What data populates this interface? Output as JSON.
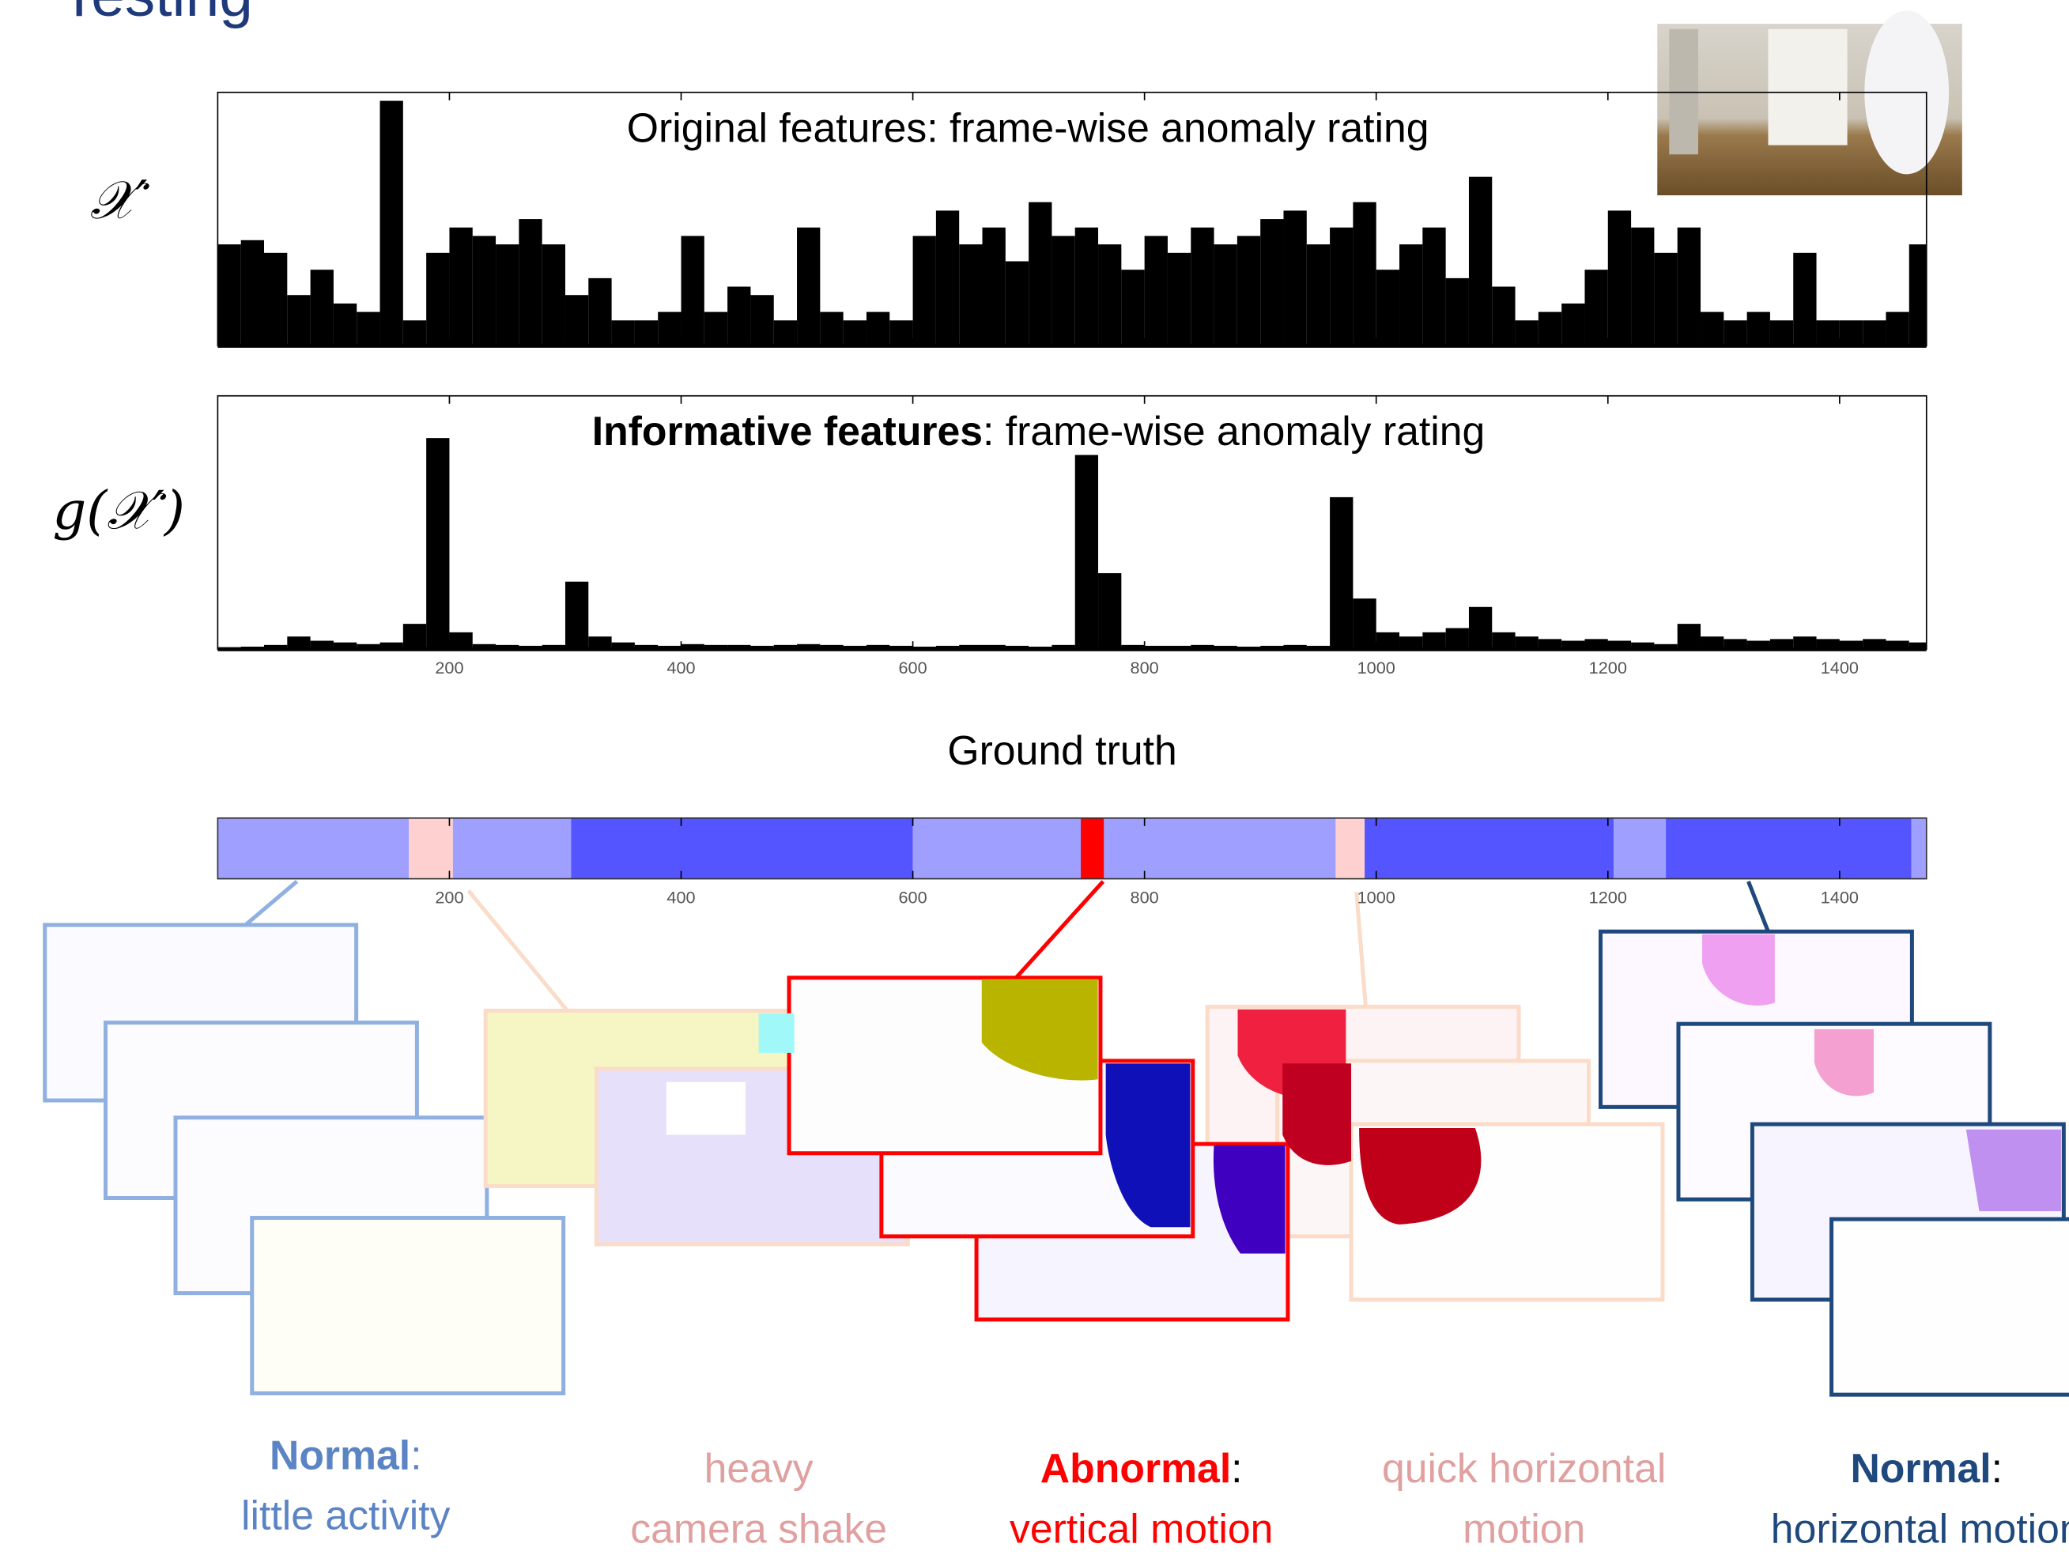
{
  "header": {
    "title": "Testing"
  },
  "chart_data": [
    {
      "type": "histogram",
      "title": "Original features: frame-wise anomaly rating",
      "ylabel": "𝒳′",
      "color": "#000000",
      "bins": [
        0,
        20,
        40,
        60,
        80,
        100,
        120,
        140,
        160,
        180,
        200,
        220,
        240,
        260,
        280,
        300,
        320,
        340,
        360,
        380,
        400,
        420,
        440,
        460,
        480,
        500,
        520,
        540,
        560,
        580,
        600,
        620,
        640,
        660,
        680,
        700,
        720,
        740,
        760,
        780,
        800,
        820,
        840,
        860,
        880,
        900,
        920,
        940,
        960,
        980,
        1000,
        1020,
        1040,
        1060,
        1080,
        1100,
        1120,
        1140,
        1160,
        1180,
        1200,
        1220,
        1240,
        1260,
        1280,
        1300,
        1320,
        1340,
        1360,
        1380,
        1400,
        1420,
        1440,
        1460,
        1475
      ],
      "values": [
        1.2,
        1.25,
        1.1,
        0.6,
        0.9,
        0.5,
        0.4,
        2.9,
        0.3,
        1.1,
        1.4,
        1.3,
        1.2,
        1.5,
        1.2,
        0.6,
        0.8,
        0.3,
        0.3,
        0.4,
        1.3,
        0.4,
        0.7,
        0.6,
        0.3,
        1.4,
        0.4,
        0.3,
        0.4,
        0.3,
        1.3,
        1.6,
        1.2,
        1.4,
        1.0,
        1.7,
        1.3,
        1.4,
        1.2,
        0.9,
        1.3,
        1.1,
        1.4,
        1.2,
        1.3,
        1.5,
        1.6,
        1.2,
        1.4,
        1.7,
        0.9,
        1.2,
        1.4,
        0.8,
        2.0,
        0.7,
        0.3,
        0.4,
        0.5,
        0.9,
        1.6,
        1.4,
        1.1,
        1.4,
        0.4,
        0.3,
        0.4,
        0.3,
        1.1,
        0.3,
        0.3,
        0.3,
        0.4,
        1.2
      ],
      "xlim": [
        0,
        1475
      ],
      "ylim": [
        0,
        3
      ]
    },
    {
      "type": "histogram",
      "title_emphasis": "Informative features",
      "title": ": frame-wise anomaly rating",
      "ylabel": "g(𝒳′)",
      "color": "#000000",
      "bins": [
        0,
        20,
        40,
        60,
        80,
        100,
        120,
        140,
        160,
        180,
        200,
        220,
        240,
        260,
        280,
        300,
        320,
        340,
        360,
        380,
        400,
        420,
        440,
        460,
        480,
        500,
        520,
        540,
        560,
        580,
        600,
        620,
        640,
        660,
        680,
        700,
        720,
        740,
        760,
        780,
        800,
        820,
        840,
        860,
        880,
        900,
        920,
        940,
        960,
        980,
        1000,
        1020,
        1040,
        1060,
        1080,
        1100,
        1120,
        1140,
        1160,
        1180,
        1200,
        1220,
        1240,
        1260,
        1280,
        1300,
        1320,
        1340,
        1360,
        1380,
        1400,
        1420,
        1440,
        1460,
        1475
      ],
      "values": [
        0.02,
        0.03,
        0.05,
        0.15,
        0.1,
        0.08,
        0.06,
        0.08,
        0.3,
        2.5,
        0.2,
        0.06,
        0.05,
        0.04,
        0.05,
        0.8,
        0.15,
        0.08,
        0.05,
        0.04,
        0.06,
        0.05,
        0.05,
        0.04,
        0.05,
        0.06,
        0.05,
        0.04,
        0.05,
        0.04,
        0.03,
        0.04,
        0.05,
        0.05,
        0.04,
        0.03,
        0.05,
        2.3,
        0.9,
        0.05,
        0.04,
        0.04,
        0.05,
        0.04,
        0.03,
        0.04,
        0.05,
        0.04,
        1.8,
        0.6,
        0.2,
        0.15,
        0.2,
        0.25,
        0.5,
        0.2,
        0.15,
        0.12,
        0.1,
        0.12,
        0.1,
        0.08,
        0.06,
        0.3,
        0.15,
        0.12,
        0.1,
        0.12,
        0.15,
        0.12,
        0.1,
        0.12,
        0.1,
        0.08
      ],
      "xlim": [
        0,
        1475
      ],
      "ylim": [
        0,
        3
      ],
      "xticks": [
        200,
        400,
        600,
        800,
        1000,
        1200,
        1400
      ]
    },
    {
      "type": "timeline",
      "title": "Ground truth",
      "xlim": [
        0,
        1475
      ],
      "xticks": [
        200,
        400,
        600,
        800,
        1000,
        1200,
        1400
      ],
      "segments": [
        {
          "start": 0,
          "end": 165,
          "color": "#9f9fff"
        },
        {
          "start": 165,
          "end": 203,
          "color": "#ffd0d0"
        },
        {
          "start": 203,
          "end": 305,
          "color": "#9f9fff"
        },
        {
          "start": 305,
          "end": 600,
          "color": "#5555ff"
        },
        {
          "start": 600,
          "end": 745,
          "color": "#9f9fff"
        },
        {
          "start": 745,
          "end": 765,
          "color": "#ff0000"
        },
        {
          "start": 765,
          "end": 965,
          "color": "#9f9fff"
        },
        {
          "start": 965,
          "end": 990,
          "color": "#ffd0d0"
        },
        {
          "start": 990,
          "end": 1205,
          "color": "#5555ff"
        },
        {
          "start": 1205,
          "end": 1250,
          "color": "#9f9fff"
        },
        {
          "start": 1250,
          "end": 1462,
          "color": "#5555ff"
        },
        {
          "start": 1462,
          "end": 1475,
          "color": "#9f9fff"
        }
      ]
    }
  ],
  "annotations": [
    {
      "bold": "Normal",
      "after": ":",
      "line2": "little activity",
      "color": "#5b84c4",
      "after_color": "#5b84c4"
    },
    {
      "line1": "heavy",
      "line2": "camera shake",
      "color": "#e0a0a0"
    },
    {
      "bold": "Abnormal",
      "after": ":",
      "line2": "vertical motion",
      "color": "#ff0000"
    },
    {
      "line1": "quick horizontal",
      "line2": "motion",
      "color": "#e0a0a0"
    },
    {
      "bold": "Normal",
      "after": ":",
      "line2": "horizontal motion",
      "color": "#1f497d"
    }
  ]
}
